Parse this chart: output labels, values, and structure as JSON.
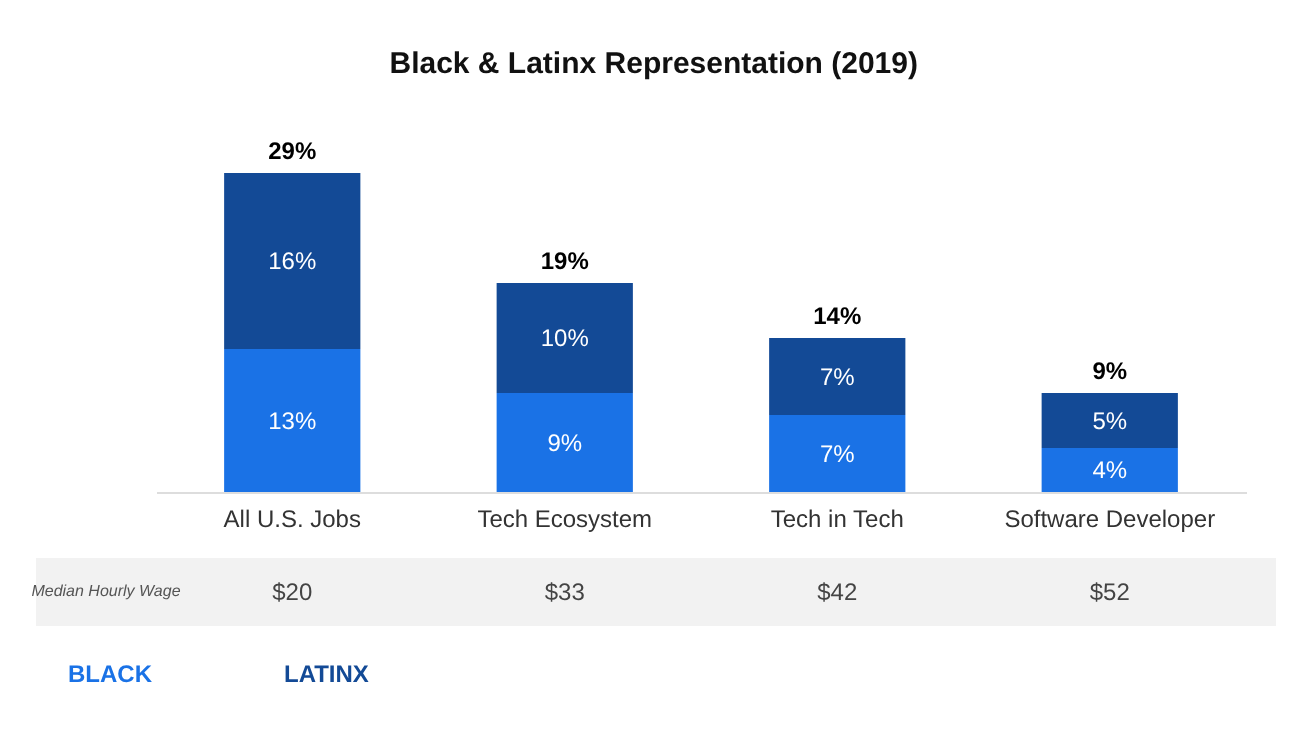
{
  "chart_data": {
    "type": "bar",
    "title": "Black & Latinx Representation (2019)",
    "stacked": true,
    "legend": "bottom",
    "categories": [
      "All U.S. Jobs",
      "Tech Ecosystem",
      "Tech in Tech",
      "Software Developer"
    ],
    "series": [
      {
        "name": "BLACK",
        "color": "#1a72e6",
        "values": [
          13,
          9,
          7,
          4
        ],
        "value_labels": [
          "13%",
          "9%",
          "7%",
          "4%"
        ]
      },
      {
        "name": "LATINX",
        "color": "#134a96",
        "values": [
          16,
          10,
          7,
          5
        ],
        "value_labels": [
          "16%",
          "10%",
          "7%",
          "5%"
        ]
      }
    ],
    "totals": [
      "29%",
      "19%",
      "14%",
      "9%"
    ],
    "annotations": [
      "Median Hourly Wage",
      "$20",
      "$33",
      "$42",
      "$52"
    ]
  }
}
